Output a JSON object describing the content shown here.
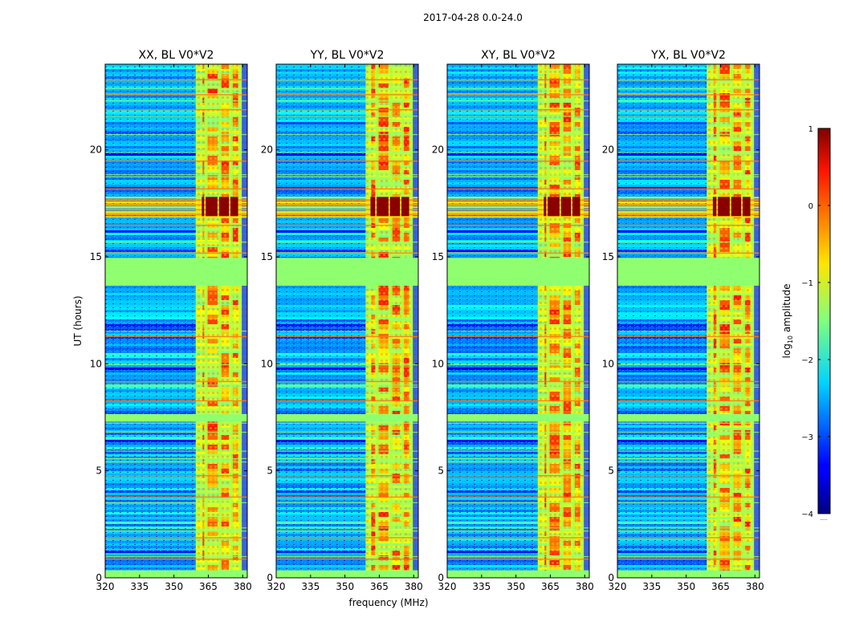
{
  "figure": {
    "title": "2017-04-28 0.0-24.0"
  },
  "chart_data": {
    "type": "heatmap",
    "suptitle": "2017-04-28 0.0-24.0",
    "xlabel": "frequency (MHz)",
    "ylabel": "UT (hours)",
    "xlim": [
      320,
      382
    ],
    "ylim": [
      0,
      24
    ],
    "xticks": [
      320,
      335,
      350,
      365,
      380
    ],
    "yticks": [
      0,
      5,
      10,
      15,
      20
    ],
    "panels": [
      {
        "title": "XX, BL V0*V2",
        "band_start_mhz": 359.5,
        "burst_start_mhz": 362.5
      },
      {
        "title": "YY, BL V0*V2",
        "band_start_mhz": 359.0,
        "burst_start_mhz": 361.5
      },
      {
        "title": "XY, BL V0*V2",
        "band_start_mhz": 359.5,
        "burst_start_mhz": 362.5
      },
      {
        "title": "YX, BL V0*V2",
        "band_start_mhz": 359.0,
        "burst_start_mhz": 362.0
      }
    ],
    "rfi_band_mhz": [
      359,
      381
    ],
    "rfi_channel_lines_mhz": [
      363.5,
      369.5,
      374.5,
      378.5
    ],
    "flagged_intervals_hours": [
      [
        0.0,
        0.35
      ],
      [
        13.65,
        14.95
      ],
      [
        7.3,
        7.65
      ]
    ],
    "strong_event_hours": [
      16.9,
      17.8
    ],
    "colorbar": {
      "label": "log₁₀ amplitude",
      "label_main": "log",
      "label_sub": "10",
      "label_rest": " amplitude",
      "range": [
        -4,
        1
      ],
      "ticks": [
        1,
        0,
        -1,
        -2,
        -3,
        -4
      ],
      "tick_labels": [
        "1",
        "0",
        "−1",
        "−2",
        "−3",
        "−4"
      ],
      "colormap": "jet",
      "extra_label": "....."
    }
  }
}
